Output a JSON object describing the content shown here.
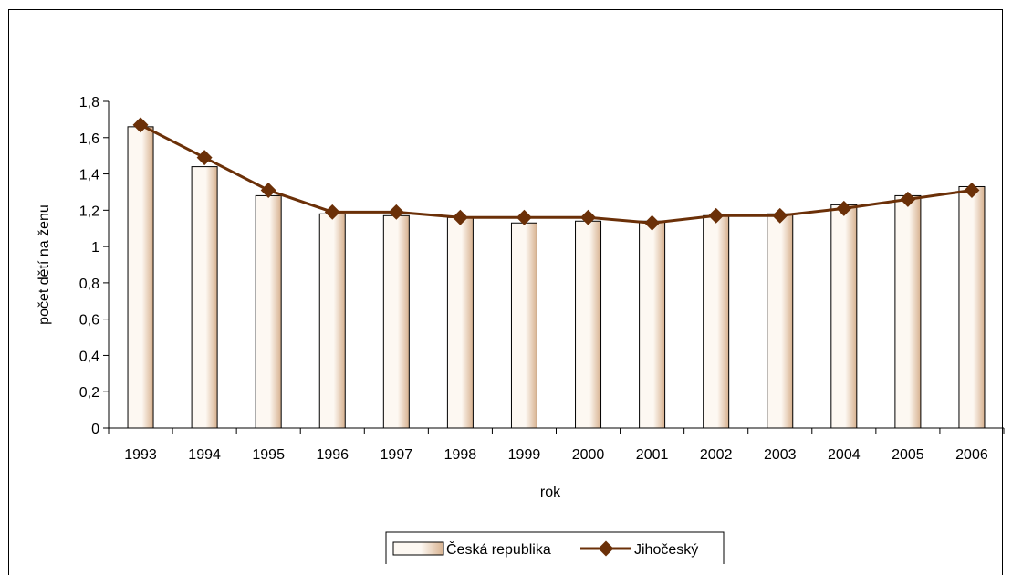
{
  "chart_data": {
    "type": "bar",
    "categories": [
      "1993",
      "1994",
      "1995",
      "1996",
      "1997",
      "1998",
      "1999",
      "2000",
      "2001",
      "2002",
      "2003",
      "2004",
      "2005",
      "2006"
    ],
    "series": [
      {
        "name": "Česká republika",
        "type": "bar",
        "values": [
          1.66,
          1.44,
          1.28,
          1.18,
          1.17,
          1.16,
          1.13,
          1.14,
          1.14,
          1.17,
          1.18,
          1.23,
          1.28,
          1.33
        ]
      },
      {
        "name": "Jihočeský",
        "type": "line",
        "values": [
          1.67,
          1.49,
          1.31,
          1.19,
          1.19,
          1.16,
          1.16,
          1.16,
          1.13,
          1.17,
          1.17,
          1.21,
          1.26,
          1.31
        ]
      }
    ],
    "xlabel": "rok",
    "ylabel": "počet dětí na ženu",
    "ylim": [
      0,
      1.8
    ],
    "yticks": [
      "0",
      "0,2",
      "0,4",
      "0,6",
      "0,8",
      "1",
      "1,2",
      "1,4",
      "1,6",
      "1,8"
    ],
    "legend_position": "bottom",
    "grid": false,
    "colors": {
      "line": "#6b3008",
      "bar_border": "#000000",
      "bar_fill_light": "#fdf8f2",
      "bar_fill_dark": "#d7b18f"
    }
  }
}
